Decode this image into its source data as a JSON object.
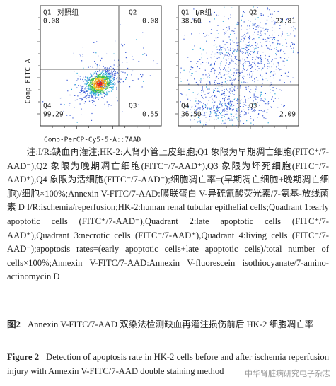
{
  "figure": {
    "y_axis_label": "Comp-FITC-A",
    "x_axis_label": "Comp-PerCP-Cy5-5-A::7AAD",
    "panels": [
      {
        "title": "对照组",
        "quadrants": [
          {
            "name": "Q1",
            "value": "0.08"
          },
          {
            "name": "Q2",
            "value": "0.08"
          },
          {
            "name": "Q3",
            "value": "0.55"
          },
          {
            "name": "Q4",
            "value": "99.29"
          }
        ]
      },
      {
        "title": "I/R组",
        "quadrants": [
          {
            "name": "Q1",
            "value": "38.60"
          },
          {
            "name": "Q2",
            "value": "22.81"
          },
          {
            "name": "Q3",
            "value": "2.09"
          },
          {
            "name": "Q4",
            "value": "36.50"
          }
        ]
      }
    ]
  },
  "notes": "注:I/R:缺血再灌注;HK-2:人肾小管上皮细胞;Q1 象限为早期凋亡细胞(FITC⁺/7-AAD⁻),Q2 象限为晚期凋亡细胞(FITC⁺/7-AAD⁺),Q3 象限为坏死细胞(FITC⁻/7-AAD⁺),Q4 象限为活细胞(FITC⁻/7-AAD⁻);细胞凋亡率=(早期凋亡细胞+晚期凋亡细胞)/细胞×100%;Annexin V-FITC/7-AAD:膜联蛋白 V-异硫氰酸荧光素/7-氨基-放线菌素 D  I/R:ischemia/reperfusion;HK-2:human renal tubular epithelial cells;Quadrant 1:early apoptotic cells (FITC⁺/7-AAD⁻),Quadrant 2:late apoptotic cells (FITC⁺/7-AAD⁺),Quadrant 3:necrotic cells (FITC⁻/7-AAD⁺),Quadrant 4:living cells (FITC⁻/7-AAD⁻);apoptosis rates=(early apoptotic cells+late apoptotic cells)/total number of cells×100%;Annexin V-FITC/7-AAD:Annexin V-fluorescein isothiocyanate/7-amino-actinomycin D",
  "caption_cn": {
    "label": "图2",
    "text": "Annexin V-FITC/7-AAD 双染法检测缺血再灌注损伤前后 HK-2 细胞凋亡率"
  },
  "caption_en": {
    "label": "Figure 2",
    "text": "Detection of apoptosis rate in HK-2 cells before and after ischemia reperfusion injury with Annexin V-FITC/7-AAD double staining method"
  },
  "watermark": "中华肾脏病研究电子杂志"
}
